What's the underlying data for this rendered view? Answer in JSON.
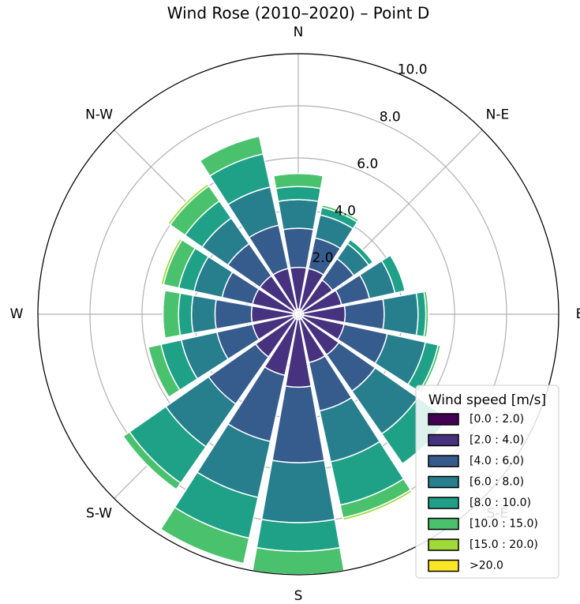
{
  "chart_data": {
    "type": "windrose",
    "title": "Wind Rose (2010–2020) – Point D",
    "legend_title": "Wind speed [m/s]",
    "legend_position": "lower right",
    "categories": [
      "N",
      null,
      "N-E",
      null,
      "E",
      null,
      "S-E",
      null,
      "S",
      null,
      "S-W",
      null,
      "W",
      null,
      "N-W",
      null
    ],
    "ylim": [
      0,
      10
    ],
    "yticks": [
      {
        "value": 2,
        "label": "2.0"
      },
      {
        "value": 4,
        "label": "4.0"
      },
      {
        "value": 6,
        "label": "6.0"
      },
      {
        "value": 8,
        "label": "8.0"
      },
      {
        "value": 10,
        "label": "10.0"
      }
    ],
    "grid": true,
    "series": [
      {
        "name": "[0.0 : 2.0)",
        "color": "#440154",
        "values": [
          0.2,
          0.2,
          0.2,
          0.2,
          0.2,
          0.2,
          0.2,
          0.2,
          0.2,
          0.2,
          0.2,
          0.2,
          0.2,
          0.2,
          0.2,
          0.2
        ]
      },
      {
        "name": "[2.0 : 4.0)",
        "color": "#46327e",
        "values": [
          1.6,
          1.6,
          1.4,
          1.5,
          1.6,
          1.6,
          1.7,
          1.7,
          2.6,
          2.2,
          1.8,
          1.6,
          1.6,
          1.6,
          1.6,
          1.6
        ]
      },
      {
        "name": "[4.0 : 6.0)",
        "color": "#365c8d",
        "values": [
          1.5,
          1.2,
          1.0,
          1.1,
          1.5,
          1.7,
          1.7,
          1.9,
          2.9,
          2.6,
          2.2,
          1.4,
          1.4,
          1.2,
          1.5,
          1.7
        ]
      },
      {
        "name": "[6.0 : 8.0)",
        "color": "#277f8e",
        "values": [
          1.1,
          0.9,
          0.7,
          1.0,
          1.3,
          1.5,
          2.0,
          2.0,
          2.3,
          2.2,
          2.0,
          1.4,
          0.9,
          1.1,
          1.2,
          1.5
        ]
      },
      {
        "name": "[8.0 : 10.0)",
        "color": "#1fa187",
        "values": [
          0.5,
          0.3,
          0.2,
          0.4,
          0.3,
          0.5,
          1.4,
          1.7,
          1.1,
          1.6,
          1.7,
          0.8,
          0.5,
          0.6,
          0.8,
          1.3
        ]
      },
      {
        "name": "[10.0 : 15.0)",
        "color": "#4ac16d",
        "values": [
          0.5,
          0.1,
          0,
          0,
          0.1,
          0.1,
          0,
          0.5,
          0.9,
          1.0,
          0.3,
          0.5,
          0.6,
          0.6,
          0.7,
          0.7
        ]
      },
      {
        "name": "[15.0 : 20.0)",
        "color": "#a0da39",
        "values": [
          0,
          0,
          0,
          0,
          0,
          0,
          0,
          0.1,
          0,
          0,
          0,
          0,
          0,
          0.1,
          0.1,
          0
        ]
      },
      {
        "name": ">20.0",
        "color": "#fde725",
        "values": [
          0,
          0,
          0,
          0,
          0,
          0,
          0,
          0,
          0,
          0,
          0,
          0,
          0,
          0,
          0,
          0
        ]
      }
    ]
  }
}
